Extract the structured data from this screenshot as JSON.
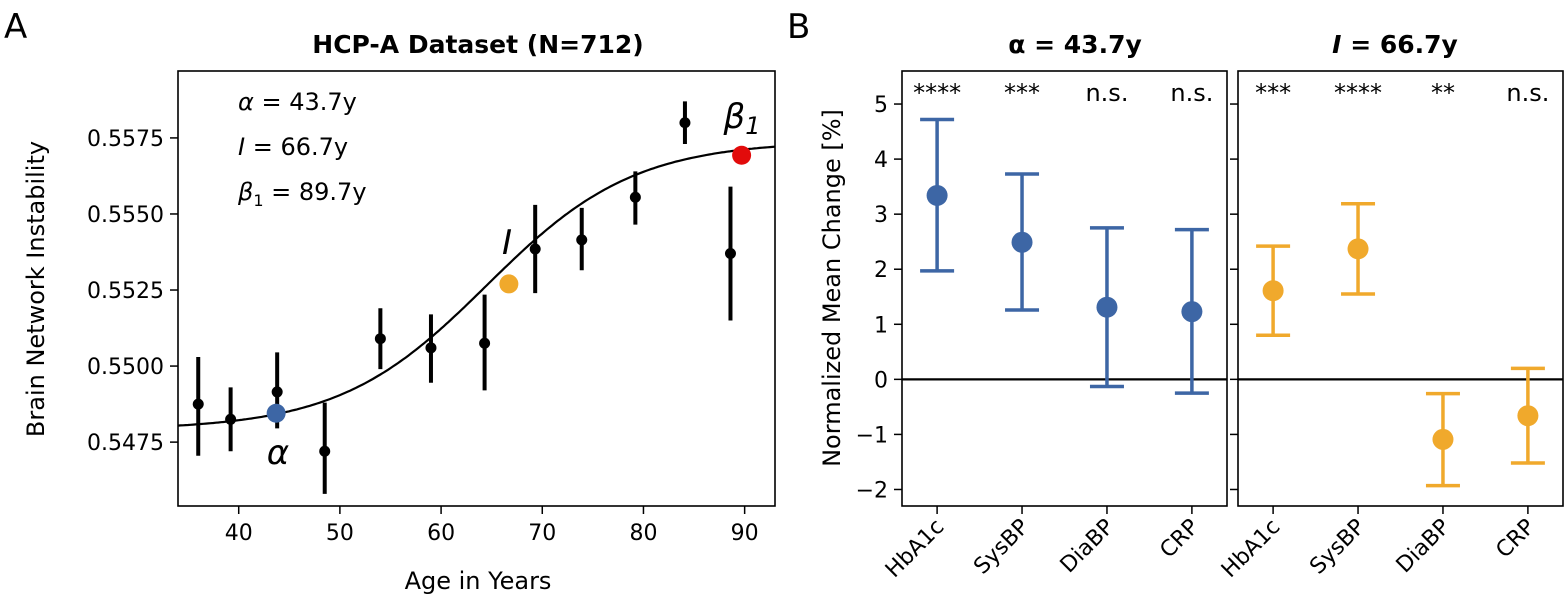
{
  "panel_labels": [
    "A",
    "B"
  ],
  "chart_data": [
    {
      "type": "scatter",
      "title": "HCP-A Dataset (N=712)",
      "xlabel": "Age in Years",
      "ylabel": "Brain Network Instability",
      "xlim": [
        34,
        93
      ],
      "ylim": [
        0.5454,
        0.5597
      ],
      "xticks": [
        40,
        50,
        60,
        70,
        80,
        90
      ],
      "yticks": [
        0.5475,
        0.55,
        0.5525,
        0.555,
        0.5575
      ],
      "ytick_labels": [
        "0.5475",
        "0.5500",
        "0.5525",
        "0.5550",
        "0.5575"
      ],
      "grid": false,
      "points": [
        {
          "x": 36.0,
          "y": 0.54875,
          "err_low": 0.54705,
          "err_high": 0.5503
        },
        {
          "x": 39.2,
          "y": 0.54825,
          "err_low": 0.5472,
          "err_high": 0.5493
        },
        {
          "x": 43.8,
          "y": 0.54915,
          "err_low": 0.54795,
          "err_high": 0.55045
        },
        {
          "x": 48.5,
          "y": 0.5472,
          "err_low": 0.5458,
          "err_high": 0.5488
        },
        {
          "x": 54.0,
          "y": 0.5509,
          "err_low": 0.5499,
          "err_high": 0.5519
        },
        {
          "x": 59.0,
          "y": 0.5506,
          "err_low": 0.54945,
          "err_high": 0.5517
        },
        {
          "x": 64.3,
          "y": 0.55075,
          "err_low": 0.5492,
          "err_high": 0.55235
        },
        {
          "x": 69.3,
          "y": 0.55385,
          "err_low": 0.5524,
          "err_high": 0.5553
        },
        {
          "x": 73.9,
          "y": 0.55415,
          "err_low": 0.55315,
          "err_high": 0.5552
        },
        {
          "x": 79.2,
          "y": 0.55555,
          "err_low": 0.55465,
          "err_high": 0.5564
        },
        {
          "x": 84.1,
          "y": 0.558,
          "err_low": 0.5573,
          "err_high": 0.5587
        },
        {
          "x": 88.6,
          "y": 0.5537,
          "err_low": 0.5515,
          "err_high": 0.5559
        }
      ],
      "fit_curve": {
        "type": "sigmoid",
        "lower": 0.5479,
        "upper": 0.5574,
        "midpoint": 64.5,
        "scale": 7.3,
        "color": "#000000"
      },
      "markers": [
        {
          "label": "α",
          "x": 43.7,
          "y": 0.54845,
          "color": "#3d66a5"
        },
        {
          "label": "I",
          "x": 66.7,
          "y": 0.5527,
          "color": "#f0a92c"
        },
        {
          "label": "β",
          "subscript": "1",
          "x": 89.7,
          "y": 0.55693,
          "color": "#e20b0b"
        }
      ],
      "annotations": [
        {
          "symbol": "α",
          "text": " = 43.7y"
        },
        {
          "symbol": "I",
          "text": " = 66.7y"
        },
        {
          "symbol": "β",
          "subscript": "1",
          "text": " = 89.7y"
        }
      ]
    },
    {
      "type": "scatter",
      "title_symbol": "α",
      "title": " = 43.7y",
      "ylabel": "Normalized Mean Change [%]",
      "categories": [
        "HbA1c",
        "SysBP",
        "DiaBP",
        "CRP"
      ],
      "ylim": [
        -2.3,
        5.6
      ],
      "yticks": [
        -2,
        -1,
        0,
        1,
        2,
        3,
        4,
        5
      ],
      "ytick_labels": [
        "−2",
        "−1",
        "0",
        "1",
        "2",
        "3",
        "4",
        "5"
      ],
      "zero_line": true,
      "grid": false,
      "color": "#3d66a5",
      "values": [
        3.34,
        2.49,
        1.31,
        1.23
      ],
      "err_low": [
        1.97,
        1.26,
        -0.13,
        -0.25
      ],
      "err_high": [
        4.72,
        3.73,
        2.75,
        2.72
      ],
      "significance": [
        "****",
        "***",
        "n.s.",
        "n.s."
      ]
    },
    {
      "type": "scatter",
      "title_symbol": "I",
      "title": " = 66.7y",
      "categories": [
        "HbA1c",
        "SysBP",
        "DiaBP",
        "CRP"
      ],
      "ylim": [
        -2.3,
        5.6
      ],
      "yticks": [
        -2,
        -1,
        0,
        1,
        2,
        3,
        4,
        5
      ],
      "zero_line": true,
      "grid": false,
      "color": "#f0a92c",
      "values": [
        1.61,
        2.37,
        -1.09,
        -0.66
      ],
      "err_low": [
        0.8,
        1.55,
        -1.93,
        -1.52
      ],
      "err_high": [
        2.42,
        3.19,
        -0.26,
        0.2
      ],
      "significance": [
        "***",
        "****",
        "**",
        "n.s."
      ]
    }
  ]
}
